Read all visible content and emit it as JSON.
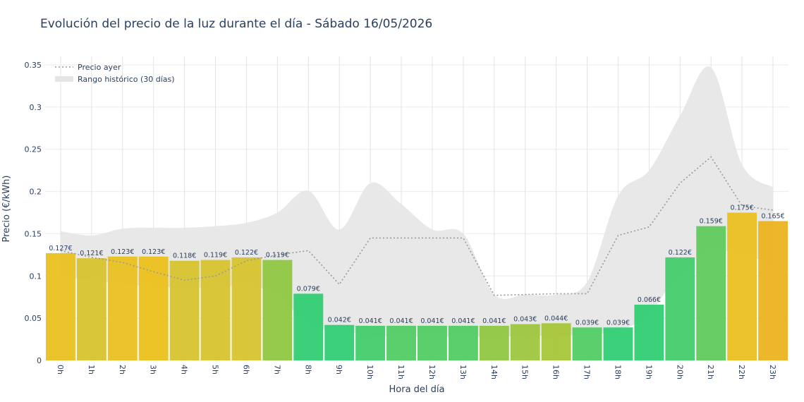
{
  "chart_data": {
    "type": "bar",
    "title": "Evolución del precio de la luz durante el día - Sábado 16/05/2026",
    "xlabel": "Hora del día",
    "ylabel": "Precio (€/kWh)",
    "ylim": [
      0,
      0.35
    ],
    "yticks": [
      "0",
      "0.05",
      "0.1",
      "0.15",
      "0.2",
      "0.25",
      "0.3",
      "0.35"
    ],
    "categories": [
      "0h",
      "1h",
      "2h",
      "3h",
      "4h",
      "5h",
      "6h",
      "7h",
      "8h",
      "9h",
      "10h",
      "11h",
      "12h",
      "13h",
      "14h",
      "15h",
      "16h",
      "17h",
      "18h",
      "19h",
      "20h",
      "21h",
      "22h",
      "23h"
    ],
    "values": [
      0.127,
      0.121,
      0.123,
      0.123,
      0.118,
      0.119,
      0.122,
      0.119,
      0.079,
      0.042,
      0.041,
      0.041,
      0.041,
      0.041,
      0.041,
      0.043,
      0.044,
      0.039,
      0.039,
      0.066,
      0.122,
      0.159,
      0.175,
      0.165
    ],
    "value_labels": [
      "0.127€",
      "0.121€",
      "0.123€",
      "0.123€",
      "0.118€",
      "0.119€",
      "0.122€",
      "0.119€",
      "0.079€",
      "0.042€",
      "0.041€",
      "0.041€",
      "0.041€",
      "0.041€",
      "0.041€",
      "0.043€",
      "0.044€",
      "0.039€",
      "0.039€",
      "0.066€",
      "0.122€",
      "0.159€",
      "0.175€",
      "0.165€"
    ],
    "bar_colors": [
      "#e8c01a",
      "#d6c32a",
      "#e8c01a",
      "#ecbf18",
      "#d6c32a",
      "#d6c32a",
      "#d6c32a",
      "#8dc63f",
      "#2ecc71",
      "#2ecc71",
      "#40cc68",
      "#4dcb60",
      "#4dcb60",
      "#4dcb60",
      "#8dc63f",
      "#9bc63a",
      "#a5c535",
      "#4dcb60",
      "#2ecc71",
      "#2ecc71",
      "#40cc68",
      "#5ec95a",
      "#e8c01a",
      "#ecb21c"
    ],
    "series": [
      {
        "name": "Precio ayer",
        "type": "line",
        "style": "dotted",
        "color": "#999999",
        "values": [
          0.13,
          0.122,
          0.116,
          0.105,
          0.095,
          0.1,
          0.118,
          0.125,
          0.13,
          0.09,
          0.145,
          0.145,
          0.145,
          0.145,
          0.077,
          0.078,
          0.079,
          0.079,
          0.148,
          0.158,
          0.21,
          0.241,
          0.183,
          0.178
        ]
      },
      {
        "name": "Rango histórico (30 días)",
        "type": "area-range",
        "color": "#e5e5e5",
        "upper": [
          0.153,
          0.148,
          0.156,
          0.157,
          0.157,
          0.159,
          0.163,
          0.175,
          0.201,
          0.155,
          0.21,
          0.185,
          0.155,
          0.15,
          0.078,
          0.078,
          0.078,
          0.093,
          0.195,
          0.225,
          0.29,
          0.347,
          0.232,
          0.205
        ],
        "lower": [
          0.1,
          0.095,
          0.09,
          0.088,
          0.086,
          0.087,
          0.088,
          0.078,
          0.042,
          0.036,
          0.03,
          0.028,
          0.028,
          0.028,
          0.028,
          0.029,
          0.029,
          0.031,
          0.035,
          0.055,
          0.105,
          0.13,
          0.125,
          0.115
        ]
      }
    ],
    "legend": {
      "position": "top-left"
    },
    "grid": true
  }
}
